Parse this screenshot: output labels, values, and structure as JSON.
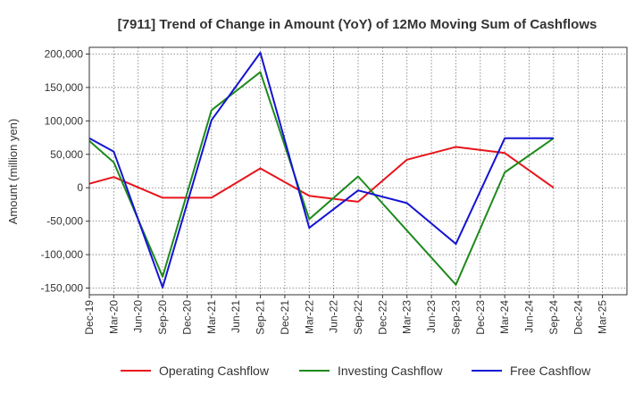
{
  "chart_data": {
    "type": "line",
    "title": "[7911]  Trend of Change in Amount (YoY) of 12Mo Moving Sum of Cashflows",
    "xlabel": "",
    "ylabel": "Amount (million yen)",
    "ylim": [
      -160000,
      210000
    ],
    "yticks": [
      -150000,
      -100000,
      -50000,
      0,
      50000,
      100000,
      150000,
      200000
    ],
    "ytick_labels": [
      "-150,000",
      "-100,000",
      "-50,000",
      "0",
      "50,000",
      "100,000",
      "150,000",
      "200,000"
    ],
    "categories": [
      "Dec-19",
      "Mar-20",
      "Jun-20",
      "Sep-20",
      "Dec-20",
      "Mar-21",
      "Jun-21",
      "Sep-21",
      "Dec-21",
      "Mar-22",
      "Jun-22",
      "Sep-22",
      "Dec-22",
      "Mar-23",
      "Jun-23",
      "Sep-23",
      "Dec-23",
      "Mar-24",
      "Jun-24",
      "Sep-24",
      "Dec-24",
      "Mar-25"
    ],
    "grid": true,
    "legend_position": "bottom",
    "series": [
      {
        "name": "Operating Cashflow",
        "color": "#e8141b",
        "points": [
          [
            0,
            6000
          ],
          [
            1,
            16000
          ],
          [
            3,
            -15000
          ],
          [
            5,
            -15000
          ],
          [
            7,
            29000
          ],
          [
            9,
            -12000
          ],
          [
            11,
            -21000
          ],
          [
            13,
            42000
          ],
          [
            15,
            61000
          ],
          [
            17,
            52000
          ],
          [
            19,
            0
          ]
        ]
      },
      {
        "name": "Investing Cashflow",
        "color": "#1e8a1e",
        "points": [
          [
            0,
            70000
          ],
          [
            1,
            38000
          ],
          [
            3,
            -133000
          ],
          [
            5,
            116000
          ],
          [
            7,
            173000
          ],
          [
            9,
            -47000
          ],
          [
            11,
            17000
          ],
          [
            15,
            -145000
          ],
          [
            17,
            23000
          ],
          [
            19,
            74000
          ]
        ]
      },
      {
        "name": "Free Cashflow",
        "color": "#1414d2",
        "points": [
          [
            0,
            74000
          ],
          [
            1,
            54000
          ],
          [
            3,
            -149000
          ],
          [
            5,
            101000
          ],
          [
            7,
            202000
          ],
          [
            9,
            -60000
          ],
          [
            11,
            -4000
          ],
          [
            13,
            -23000
          ],
          [
            15,
            -84000
          ],
          [
            17,
            74000
          ],
          [
            19,
            74000
          ]
        ]
      }
    ]
  }
}
